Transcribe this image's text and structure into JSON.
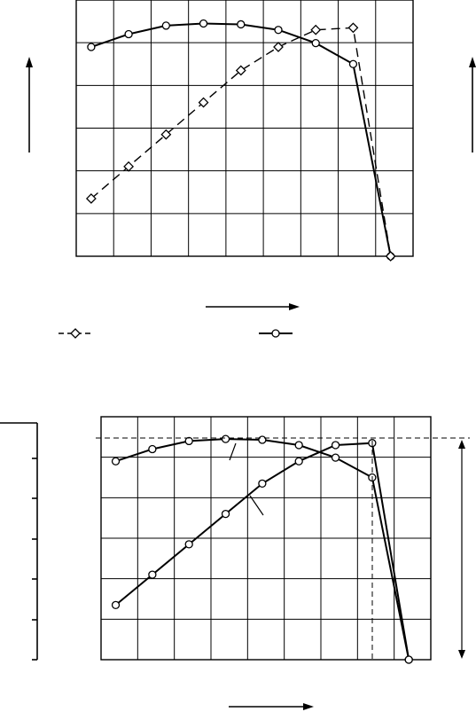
{
  "chart_data": [
    {
      "type": "line",
      "title": "",
      "xlabel": "",
      "ylabel": "",
      "xlim": [
        0,
        9
      ],
      "ylim": [
        0,
        6
      ],
      "grid": true,
      "legend_position": "bottom",
      "series": [
        {
          "marker": "circle",
          "line_style": "solid",
          "x": [
            0.4,
            1.4,
            2.4,
            3.4,
            4.4,
            5.4,
            6.4,
            7.4,
            8.4
          ],
          "y": [
            4.9,
            5.2,
            5.4,
            5.45,
            5.43,
            5.3,
            4.99,
            4.5,
            0.0
          ]
        },
        {
          "marker": "diamond",
          "line_style": "dashed",
          "x": [
            0.4,
            1.4,
            2.4,
            3.4,
            4.4,
            5.4,
            6.4,
            7.4,
            8.4
          ],
          "y": [
            1.35,
            2.1,
            2.85,
            3.6,
            4.35,
            4.9,
            5.3,
            5.35,
            0.0
          ]
        }
      ],
      "legend": [
        {
          "marker": "diamond",
          "line_style": "dashed"
        },
        {
          "marker": "circle",
          "line_style": "solid"
        }
      ]
    },
    {
      "type": "line",
      "title": "",
      "xlabel": "",
      "ylabel": "",
      "xlim": [
        0,
        9
      ],
      "ylim": [
        0,
        6
      ],
      "grid": true,
      "series": [
        {
          "marker": "circle",
          "line_style": "solid",
          "x": [
            0.4,
            1.4,
            2.4,
            3.4,
            4.4,
            5.4,
            6.4,
            7.4,
            8.4
          ],
          "y": [
            4.9,
            5.2,
            5.4,
            5.45,
            5.43,
            5.3,
            4.99,
            4.5,
            0.0
          ]
        },
        {
          "marker": "circle",
          "line_style": "solid",
          "x": [
            0.4,
            1.4,
            2.4,
            3.4,
            4.4,
            5.4,
            6.4,
            7.4,
            8.4
          ],
          "y": [
            1.35,
            2.1,
            2.85,
            3.6,
            4.35,
            4.9,
            5.3,
            5.35,
            0.0
          ]
        }
      ]
    }
  ]
}
